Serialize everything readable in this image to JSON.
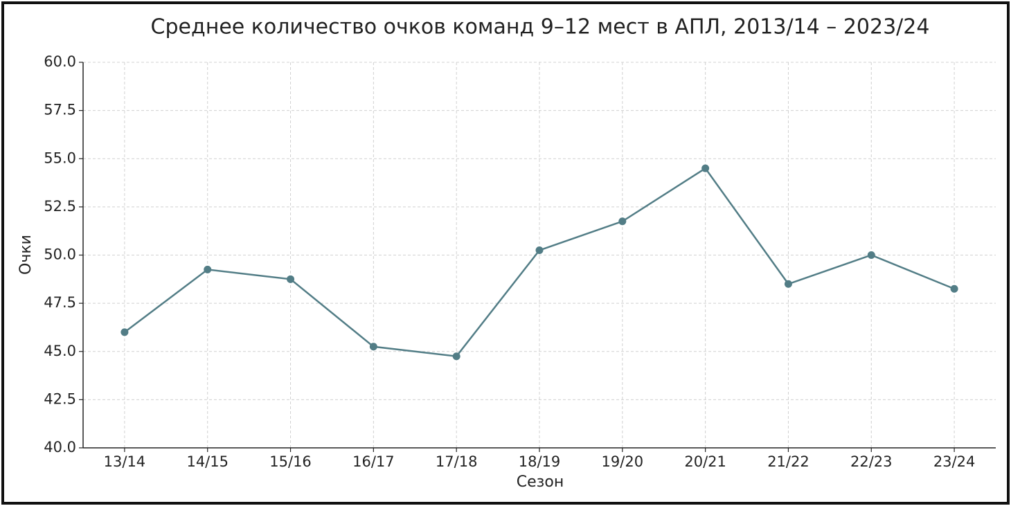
{
  "chart_data": {
    "type": "line",
    "title": "Среднее количество очков команд 9–12 мест в АПЛ, 2013/14 – 2023/24",
    "x_label": "Сезон",
    "y_label": "Очки",
    "categories": [
      "13/14",
      "14/15",
      "15/16",
      "16/17",
      "17/18",
      "18/19",
      "19/20",
      "20/21",
      "21/22",
      "22/23",
      "23/24"
    ],
    "series": [
      {
        "name": "Очки",
        "color": "#527d86",
        "values": [
          46.0,
          49.25,
          48.75,
          45.25,
          44.75,
          50.25,
          51.75,
          54.5,
          48.5,
          50.0,
          48.25
        ]
      }
    ],
    "ylim": [
      40,
      60
    ],
    "yticks": [
      {
        "value": 40,
        "label": "40.0"
      },
      {
        "value": 42.5,
        "label": "42.5"
      },
      {
        "value": 45,
        "label": "45.0"
      },
      {
        "value": 47.5,
        "label": "47.5"
      },
      {
        "value": 50,
        "label": "50.0"
      },
      {
        "value": 52.5,
        "label": "52.5"
      },
      {
        "value": 55,
        "label": "55.0"
      },
      {
        "value": 57.5,
        "label": "57.5"
      },
      {
        "value": 60,
        "label": "60.0"
      }
    ],
    "grid": true
  }
}
